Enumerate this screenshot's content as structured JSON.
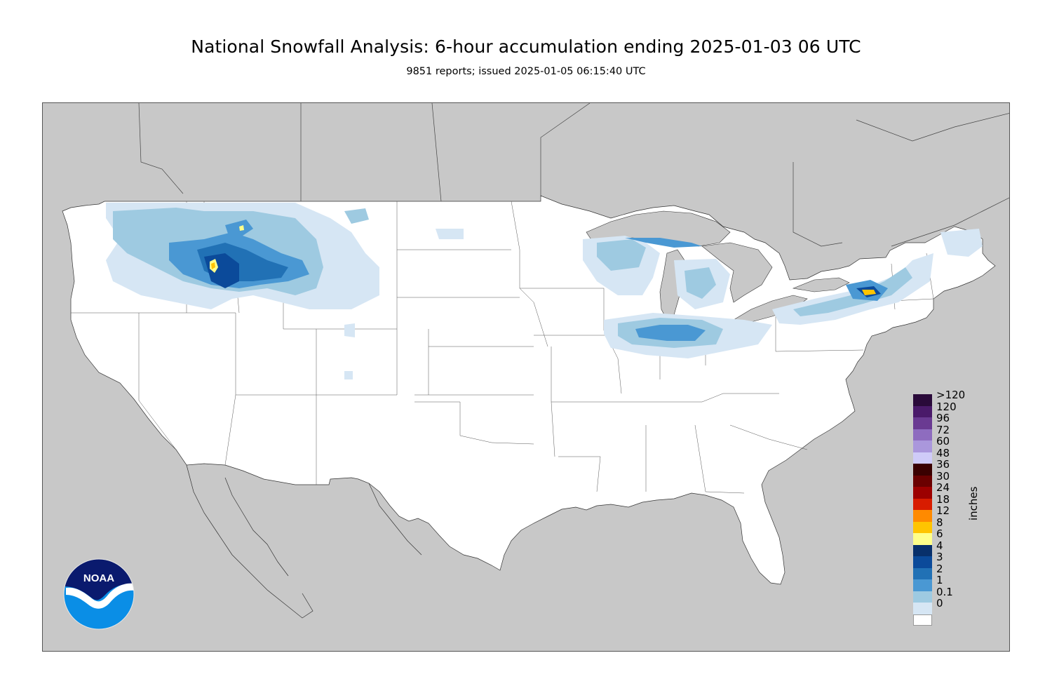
{
  "header": {
    "title": "National Snowfall Analysis: 6-hour accumulation ending 2025-01-03 06 UTC",
    "subtitle": "9851 reports; issued 2025-01-05 06:15:40 UTC"
  },
  "map": {
    "land_color": "#ffffff",
    "water_color": "#c8c8c8",
    "border_color": "#555555"
  },
  "legend": {
    "units": "inches",
    "items": [
      {
        "label": ">120",
        "color": "#2a0a3a"
      },
      {
        "label": "120",
        "color": "#4a1a6a"
      },
      {
        "label": "96",
        "color": "#6a3a92"
      },
      {
        "label": "72",
        "color": "#8e6cbf"
      },
      {
        "label": "60",
        "color": "#aa97dc"
      },
      {
        "label": "48",
        "color": "#cfcbf8"
      },
      {
        "label": "36",
        "color": "#3a0000"
      },
      {
        "label": "30",
        "color": "#6a0000"
      },
      {
        "label": "24",
        "color": "#9c0000"
      },
      {
        "label": "18",
        "color": "#d81c00"
      },
      {
        "label": "12",
        "color": "#ff8a00"
      },
      {
        "label": "8",
        "color": "#ffc400"
      },
      {
        "label": "6",
        "color": "#ffff8a"
      },
      {
        "label": "4",
        "color": "#08306b"
      },
      {
        "label": "3",
        "color": "#0b4a9a"
      },
      {
        "label": "2",
        "color": "#2171b5"
      },
      {
        "label": "1",
        "color": "#4a98d3"
      },
      {
        "label": "0.1",
        "color": "#9ecae1"
      },
      {
        "label": "0",
        "color": "#d6e6f4"
      },
      {
        "label": "",
        "color": "#ffffff"
      }
    ]
  },
  "logo": {
    "text": "NOAA",
    "top_color": "#0a1a6e",
    "bottom_color": "#0a8ee6",
    "icon": "noaa-logo-icon"
  }
}
